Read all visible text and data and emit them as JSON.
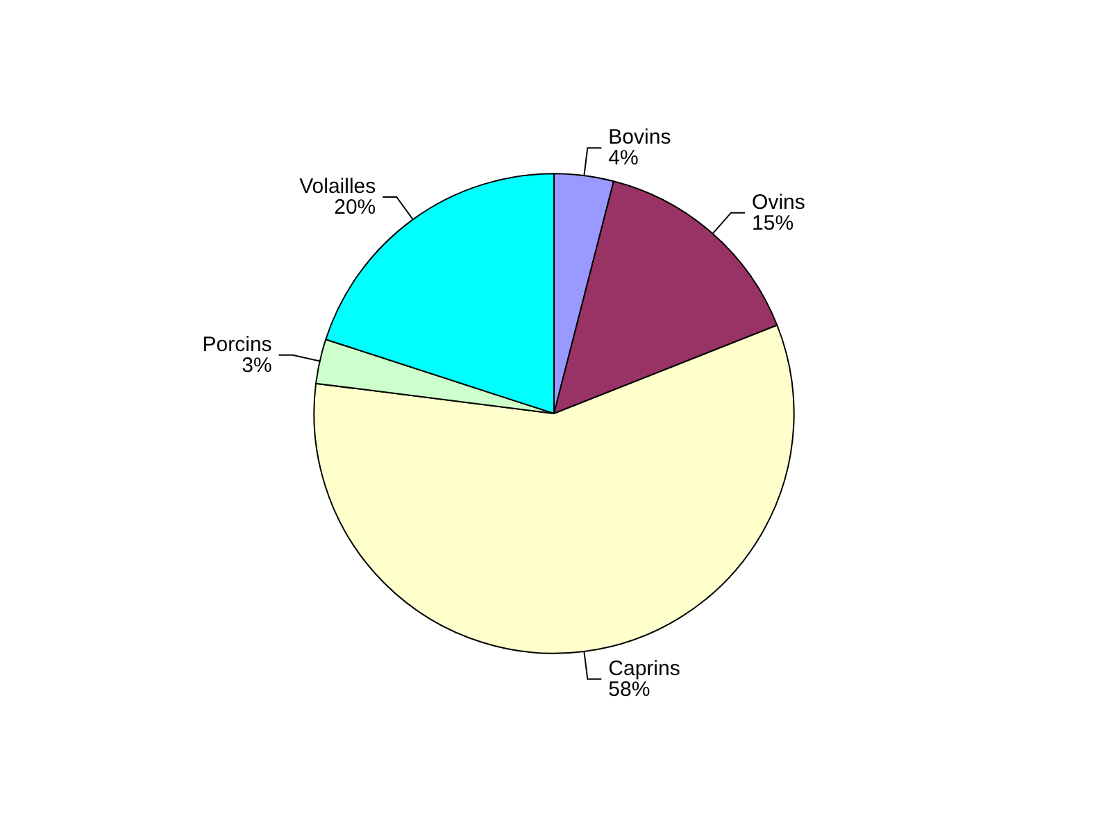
{
  "chart_data": {
    "type": "pie",
    "categories": [
      "Bovins",
      "Ovins",
      "Caprins",
      "Porcins",
      "Volailles"
    ],
    "values": [
      4,
      15,
      58,
      3,
      20
    ],
    "value_labels": [
      "4%",
      "15%",
      "58%",
      "3%",
      "20%"
    ],
    "colors": [
      "#9999ff",
      "#993366",
      "#ffffcc",
      "#ccffcc",
      "#00ffff"
    ],
    "legend": false
  }
}
